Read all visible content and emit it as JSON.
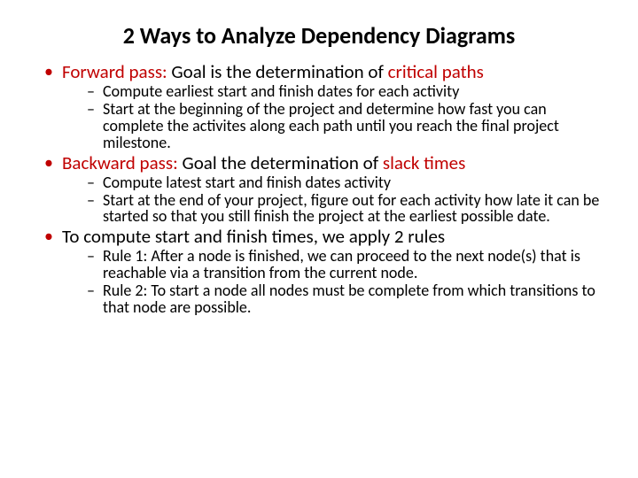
{
  "colors": {
    "accent": "#c00000",
    "text": "#000000",
    "background": "#ffffff"
  },
  "typography": {
    "title_fontsize": 26,
    "title_weight": 700,
    "l1_fontsize": 21,
    "l2_fontsize": 18,
    "font_family": "Calibri"
  },
  "title": "2 Ways to Analyze Dependency Diagrams",
  "bullets": [
    {
      "lead_accent": "Forward pass:",
      "lead_plain": " Goal is the determination of ",
      "tail_accent": "critical paths",
      "subs": [
        "Compute earliest start and finish dates for each activity",
        "Start at the beginning of the project and determine how fast you can complete the activites along each path until you reach the final project milestone."
      ]
    },
    {
      "lead_accent": "Backward pass:",
      "lead_plain": " Goal the determination of ",
      "tail_accent": "slack times",
      "subs": [
        "Compute latest start and finish dates activity",
        "Start at the end of your project, figure out for each activity how late it can be started so that you still finish the project at the earliest possible date."
      ]
    },
    {
      "lead_accent": "",
      "lead_plain": "To compute start and finish times, we apply 2 rules",
      "tail_accent": "",
      "subs": [
        "Rule 1: After a node is finished, we can proceed to the next node(s)  that is reachable via a transition from the current node.",
        "Rule 2: To start a node all nodes must be complete from which transitions to that node are possible."
      ]
    }
  ]
}
